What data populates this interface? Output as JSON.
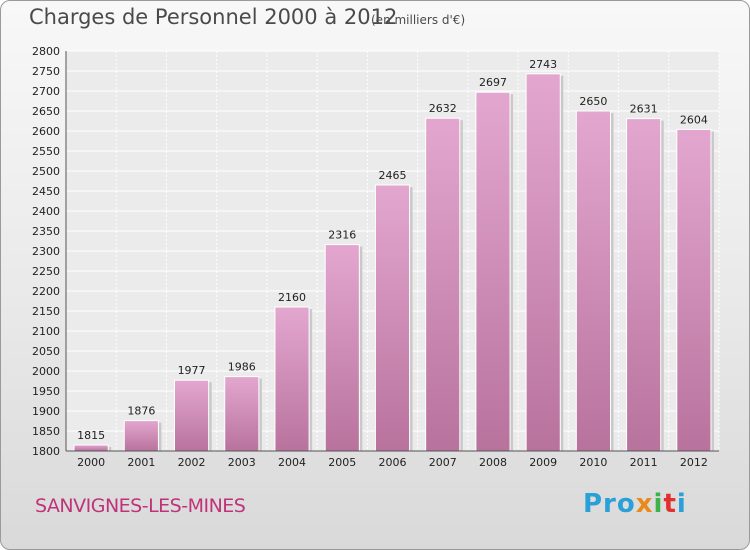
{
  "header": {
    "title": "Charges de Personnel 2000 à 2012",
    "subtitle": "(en milliers d'€)"
  },
  "footer": {
    "town": "SANVIGNES-LES-MINES",
    "logo": [
      "Pro",
      "x",
      "i",
      "t",
      "i"
    ]
  },
  "colors": {
    "bar_top": "#e3a7cf",
    "bar_bottom": "#b8739d",
    "town_text": "#c0327a"
  },
  "chart_data": {
    "type": "bar",
    "title": "Charges de Personnel 2000 à 2012",
    "subtitle": "(en milliers d'€)",
    "categories": [
      "2000",
      "2001",
      "2002",
      "2003",
      "2004",
      "2005",
      "2006",
      "2007",
      "2008",
      "2009",
      "2010",
      "2011",
      "2012"
    ],
    "values": [
      1815,
      1876,
      1977,
      1986,
      2160,
      2316,
      2465,
      2632,
      2697,
      2743,
      2650,
      2631,
      2604
    ],
    "ylim": [
      1800,
      2800
    ],
    "ytick_step": 50,
    "grid": true,
    "xlabel": "",
    "ylabel": ""
  }
}
